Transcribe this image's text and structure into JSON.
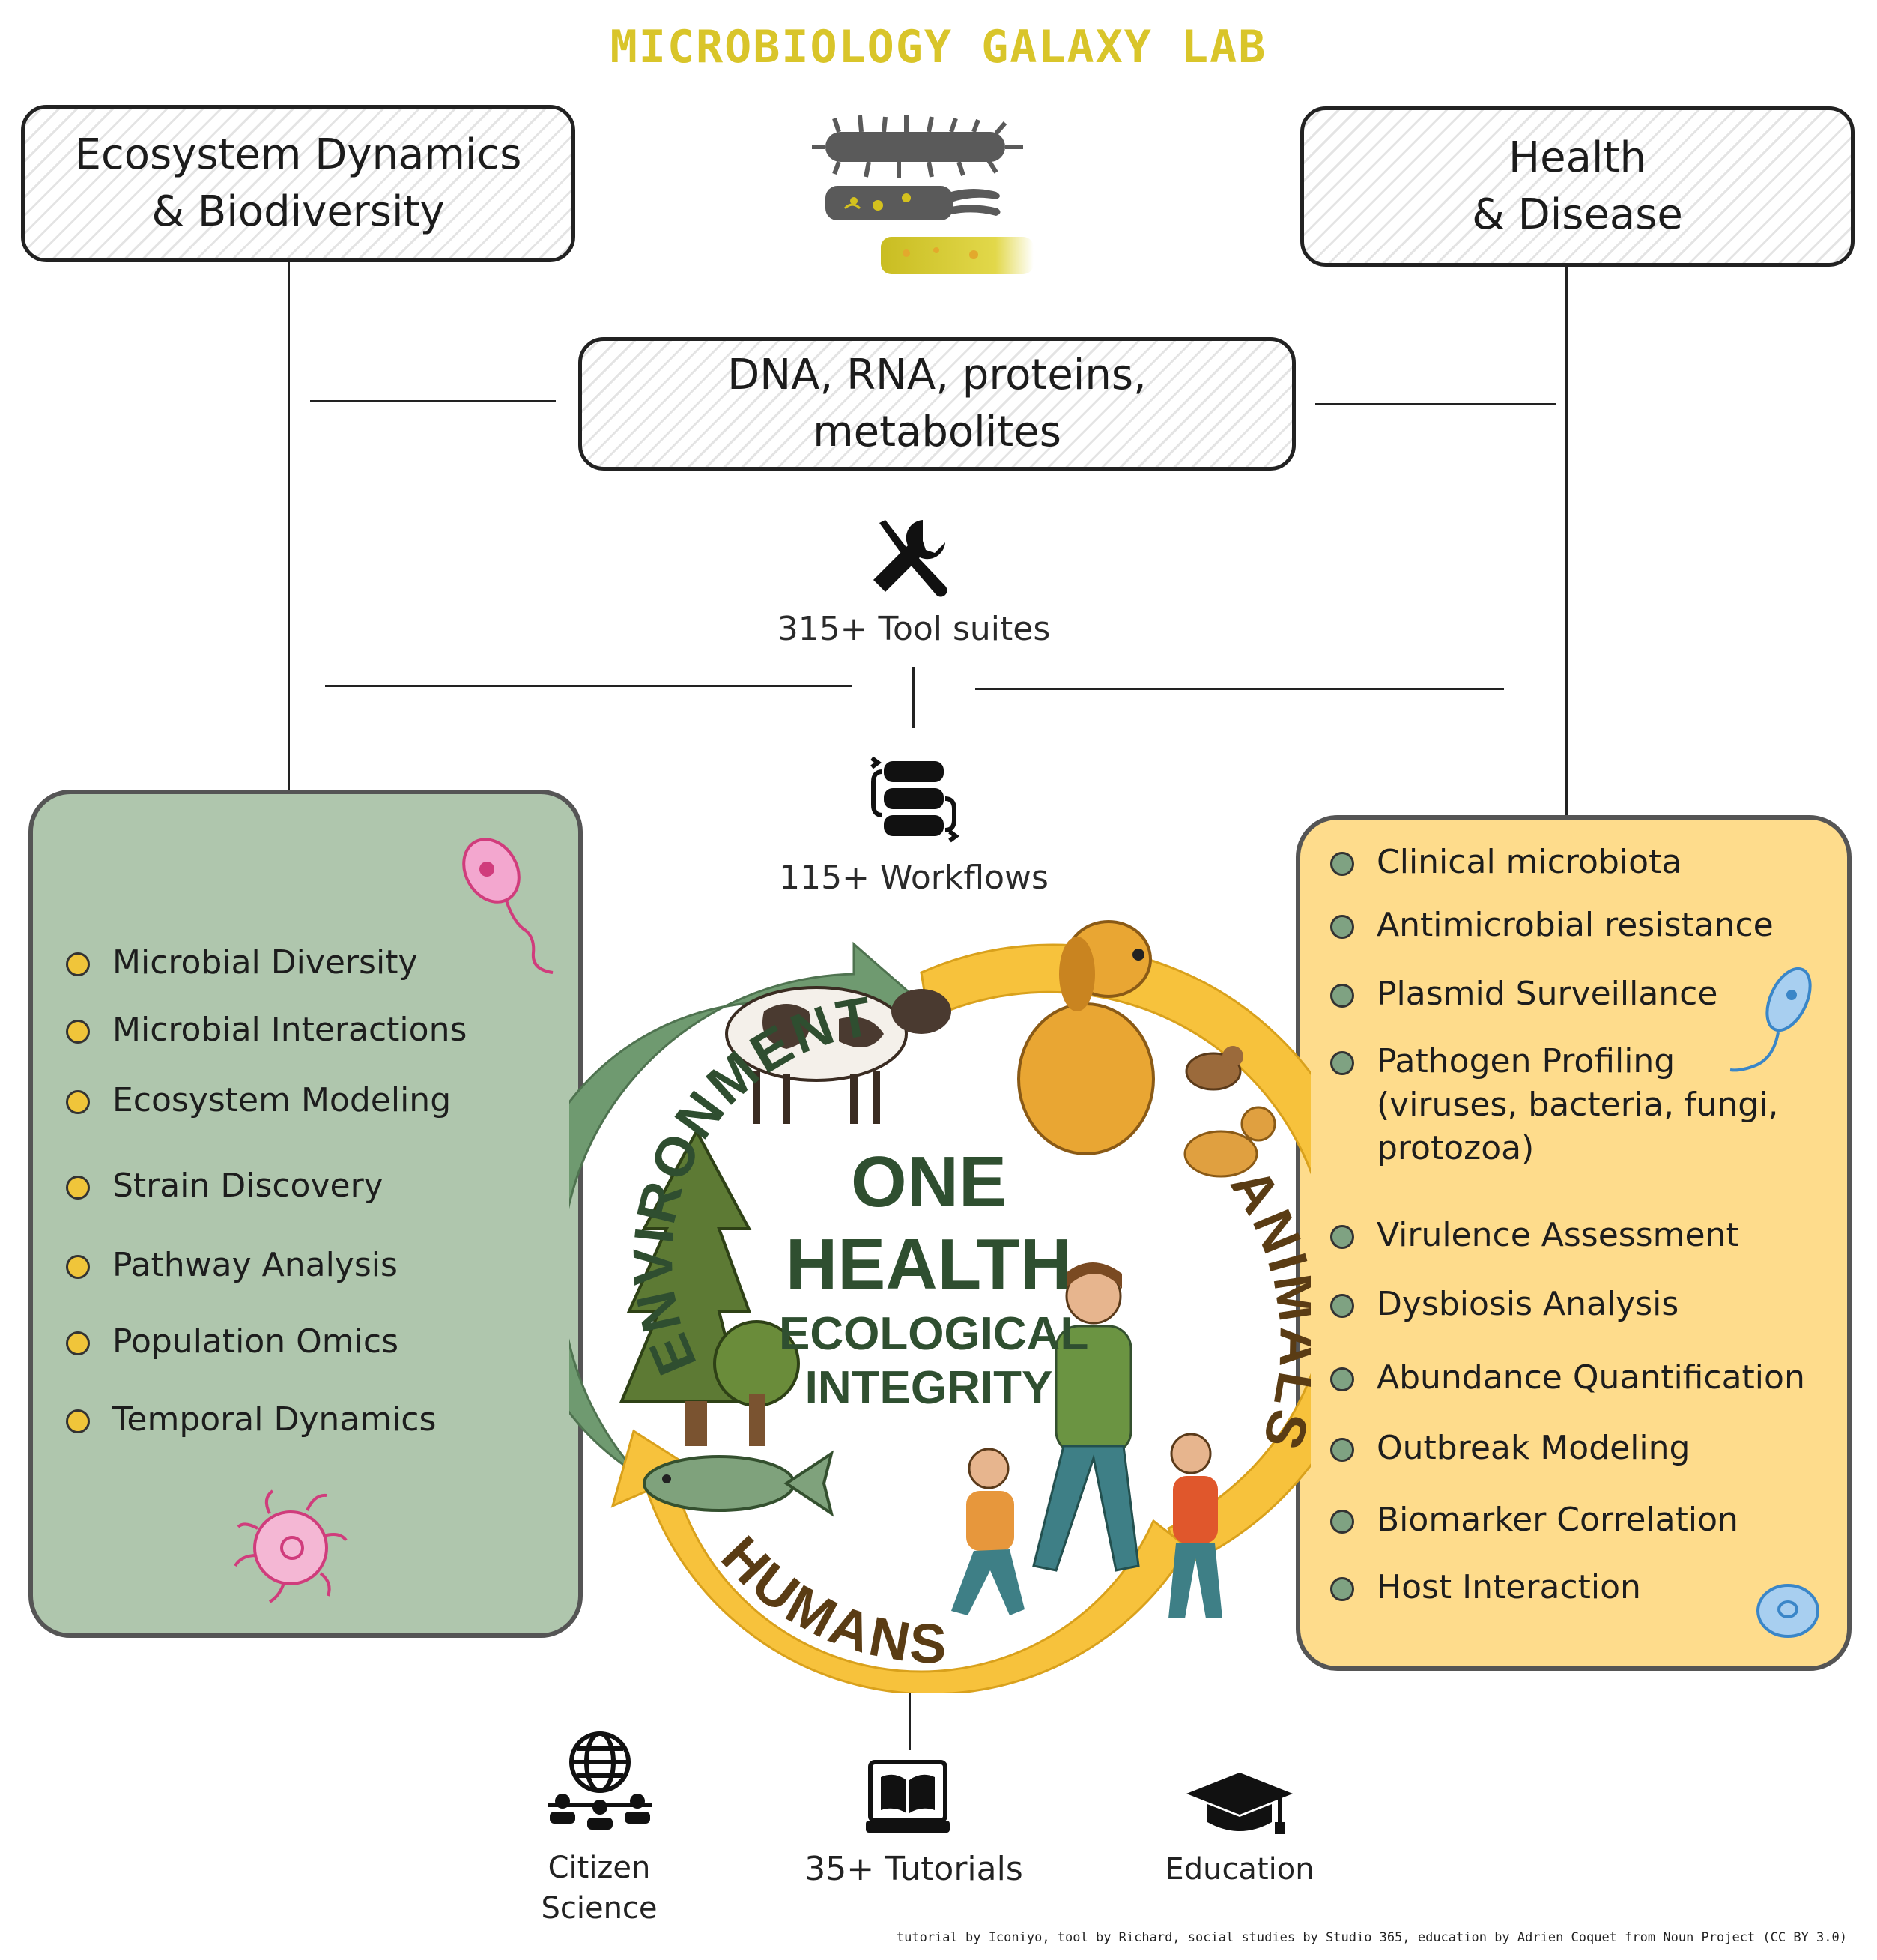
{
  "title": "MICROBIOLOGY GALAXY LAB",
  "left_header": {
    "line1": "Ecosystem Dynamics",
    "line2": "& Biodiversity"
  },
  "right_header": {
    "line1": "Health",
    "line2": "& Disease"
  },
  "center_box": {
    "line1": "DNA, RNA, proteins,",
    "line2": "metabolites"
  },
  "tools": {
    "label": "315+ Tool suites",
    "icon": "wrench-screwdriver-icon"
  },
  "workflows": {
    "label": "115+ Workflows",
    "icon": "workflow-icon"
  },
  "left_panel": {
    "items": [
      "Microbial Diversity",
      "Microbial Interactions",
      "Ecosystem Modeling",
      "Strain Discovery",
      "Pathway Analysis",
      "Population Omics",
      "Temporal Dynamics"
    ]
  },
  "right_panel": {
    "items": [
      "Clinical microbiota",
      "Antimicrobial resistance",
      "Plasmid Surveillance",
      "Pathogen Profiling (viruses, bacteria, fungi, protozoa)",
      "Virulence Assessment",
      "Dysbiosis Analysis",
      "Abundance Quantification",
      "Outbreak Modeling",
      "Biomarker Correlation",
      "Host Interaction"
    ]
  },
  "one_health": {
    "line1": "ONE",
    "line2": "HEALTH",
    "line3": "ECOLOGICAL",
    "line4": "INTEGRITY",
    "environment": "ENVIRONMENT",
    "animals": "ANIMALS",
    "humans": "HUMANS"
  },
  "bottom": {
    "citizen_line1": "Citizen",
    "citizen_line2": "Science",
    "tutorials": "35+ Tutorials",
    "education": "Education"
  },
  "credit": "tutorial by Iconiyo, tool by Richard, social studies by Studio 365, education by Adrien Coquet from Noun Project (CC BY 3.0)",
  "colors": {
    "title": "#d9c52a",
    "green_panel": "#afc6ad",
    "yellow_panel": "#fedc8c",
    "ring_green": "#6f9a70",
    "ring_yellow": "#f7c23c",
    "center_text": "#2f4f30"
  }
}
